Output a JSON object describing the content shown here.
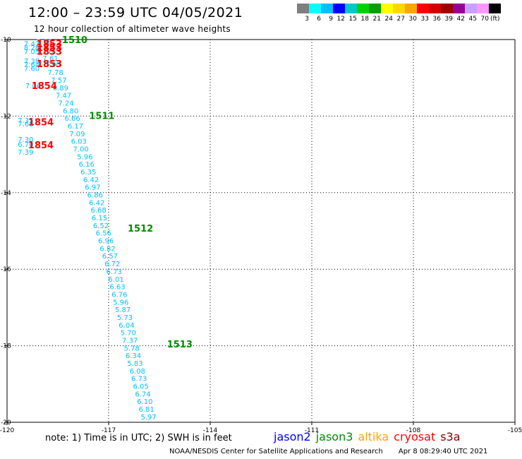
{
  "header": {
    "title": "12:00 – 23:59 UTC 04/05/2021",
    "subtitle": "12 hour collection of altimeter wave heights"
  },
  "colorbar": {
    "colors": [
      "#7f7f7f",
      "#00ffff",
      "#00bfff",
      "#0000ff",
      "#00c8c8",
      "#00d200",
      "#00a000",
      "#ffff00",
      "#ffd700",
      "#ffa500",
      "#ff0000",
      "#d20000",
      "#a00000",
      "#960096",
      "#c8a0ff",
      "#ff96ff",
      "#000000"
    ],
    "labels": [
      "3",
      "6",
      "9",
      "12",
      "15",
      "18",
      "21",
      "24",
      "27",
      "30",
      "33",
      "36",
      "39",
      "42",
      "45",
      "70"
    ],
    "unit": "(ft)"
  },
  "note": "note:  1) Time is in UTC;  2) SWH is in feet",
  "satellites": [
    {
      "name": "jason2",
      "color": "#0000ff"
    },
    {
      "name": "jason3",
      "color": "#008c00"
    },
    {
      "name": "altika",
      "color": "#ffa500"
    },
    {
      "name": "cryosat",
      "color": "#ff0000"
    },
    {
      "name": "s3a",
      "color": "#800000"
    }
  ],
  "footer": {
    "center": "NOAA/NESDIS Center for Satellite Applications and Research",
    "timestamp": "Apr  8 08:29:40 UTC 2021"
  },
  "chart_data": {
    "type": "scatter",
    "xlim": [
      -120,
      -105
    ],
    "ylim": [
      -20,
      -10
    ],
    "xticks": [
      -120,
      -117,
      -114,
      -111,
      -108,
      -105
    ],
    "yticks": [
      -10,
      -12,
      -14,
      -16,
      -18,
      -20
    ],
    "grid": true,
    "point_color": "#00bfff",
    "jason3_color": "#008c00",
    "cryosat_color": "#ff0000",
    "wave_heights": [
      {
        "x": -118.9,
        "y": -10.05,
        "v": "7.66"
      },
      {
        "x": -119.27,
        "y": -10.1,
        "v": "7.47"
      },
      {
        "x": -119.27,
        "y": -10.2,
        "v": "8.28"
      },
      {
        "x": -119.27,
        "y": -10.3,
        "v": "7.05"
      },
      {
        "x": -118.87,
        "y": -10.3,
        "v": "8.00"
      },
      {
        "x": -118.72,
        "y": -10.48,
        "v": "7.61"
      },
      {
        "x": -119.27,
        "y": -10.55,
        "v": "7.38"
      },
      {
        "x": -119.27,
        "y": -10.65,
        "v": "7.64"
      },
      {
        "x": -118.65,
        "y": -10.65,
        "v": "7.90"
      },
      {
        "x": -119.27,
        "y": -10.75,
        "v": "7.60"
      },
      {
        "x": -118.57,
        "y": -10.85,
        "v": "7.78"
      },
      {
        "x": -118.47,
        "y": -11.05,
        "v": "7.57"
      },
      {
        "x": -119.23,
        "y": -11.2,
        "v": "7.06"
      },
      {
        "x": -118.42,
        "y": -11.25,
        "v": "6.89"
      },
      {
        "x": -118.33,
        "y": -11.45,
        "v": "7.47"
      },
      {
        "x": -118.26,
        "y": -11.65,
        "v": "7.24"
      },
      {
        "x": -118.12,
        "y": -11.85,
        "v": "6.80"
      },
      {
        "x": -119.45,
        "y": -12.1,
        "v": "7.35"
      },
      {
        "x": -119.45,
        "y": -12.2,
        "v": "7.68"
      },
      {
        "x": -118.07,
        "y": -12.05,
        "v": "6.66"
      },
      {
        "x": -117.98,
        "y": -12.25,
        "v": "6.17"
      },
      {
        "x": -117.93,
        "y": -12.45,
        "v": "7.09"
      },
      {
        "x": -119.45,
        "y": -12.6,
        "v": "7.30"
      },
      {
        "x": -119.45,
        "y": -12.73,
        "v": "6.70"
      },
      {
        "x": -117.88,
        "y": -12.65,
        "v": "6.03"
      },
      {
        "x": -119.45,
        "y": -12.93,
        "v": "7.39"
      },
      {
        "x": -117.82,
        "y": -12.85,
        "v": "7.00"
      },
      {
        "x": -117.7,
        "y": -13.05,
        "v": "5.96"
      },
      {
        "x": -117.65,
        "y": -13.25,
        "v": "6.16"
      },
      {
        "x": -117.6,
        "y": -13.45,
        "v": "6.35"
      },
      {
        "x": -117.52,
        "y": -13.65,
        "v": "6.42"
      },
      {
        "x": -117.47,
        "y": -13.85,
        "v": "6.97"
      },
      {
        "x": -117.4,
        "y": -14.05,
        "v": "6.86"
      },
      {
        "x": -117.35,
        "y": -14.25,
        "v": "6.42"
      },
      {
        "x": -117.3,
        "y": -14.45,
        "v": "6.68"
      },
      {
        "x": -117.27,
        "y": -14.65,
        "v": "6.15"
      },
      {
        "x": -117.23,
        "y": -14.85,
        "v": "6.52"
      },
      {
        "x": -117.15,
        "y": -15.05,
        "v": "6.56"
      },
      {
        "x": -117.08,
        "y": -15.25,
        "v": "6.96"
      },
      {
        "x": -117.03,
        "y": -15.45,
        "v": "6.82"
      },
      {
        "x": -116.96,
        "y": -15.65,
        "v": "6.57"
      },
      {
        "x": -116.89,
        "y": -15.85,
        "v": "6.72"
      },
      {
        "x": -116.84,
        "y": -16.05,
        "v": "6.73"
      },
      {
        "x": -116.78,
        "y": -16.25,
        "v": "6.01"
      },
      {
        "x": -116.74,
        "y": -16.45,
        "v": "6.63"
      },
      {
        "x": -116.68,
        "y": -16.65,
        "v": "6.76"
      },
      {
        "x": -116.64,
        "y": -16.85,
        "v": "5.96"
      },
      {
        "x": -116.58,
        "y": -17.05,
        "v": "5.87"
      },
      {
        "x": -116.52,
        "y": -17.25,
        "v": "5.73"
      },
      {
        "x": -116.47,
        "y": -17.45,
        "v": "6.04"
      },
      {
        "x": -116.42,
        "y": -17.65,
        "v": "5.70"
      },
      {
        "x": -116.37,
        "y": -17.85,
        "v": "7.37"
      },
      {
        "x": -116.32,
        "y": -18.05,
        "v": "5.78"
      },
      {
        "x": -116.27,
        "y": -18.25,
        "v": "6.34"
      },
      {
        "x": -116.22,
        "y": -18.45,
        "v": "5.83"
      },
      {
        "x": -116.15,
        "y": -18.65,
        "v": "6.08"
      },
      {
        "x": -116.1,
        "y": -18.85,
        "v": "6.73"
      },
      {
        "x": -116.05,
        "y": -19.05,
        "v": "6.05"
      },
      {
        "x": -115.99,
        "y": -19.25,
        "v": "6.74"
      },
      {
        "x": -115.93,
        "y": -19.45,
        "v": "6.10"
      },
      {
        "x": -115.88,
        "y": -19.65,
        "v": "6.81"
      },
      {
        "x": -115.82,
        "y": -19.85,
        "v": "5.97"
      }
    ],
    "jason3_times": [
      {
        "x": -118.0,
        "y": -10.0,
        "v": "1510"
      },
      {
        "x": -117.2,
        "y": -11.98,
        "v": "1511"
      },
      {
        "x": -116.06,
        "y": -14.93,
        "v": "1512"
      },
      {
        "x": -114.9,
        "y": -17.95,
        "v": "1513"
      }
    ],
    "cryosat_times": [
      {
        "x": -118.75,
        "y": -10.1,
        "v": "1853"
      },
      {
        "x": -118.75,
        "y": -10.2,
        "v": "1853"
      },
      {
        "x": -118.75,
        "y": -10.3,
        "v": "1853"
      },
      {
        "x": -118.75,
        "y": -10.63,
        "v": "1853"
      },
      {
        "x": -118.9,
        "y": -11.2,
        "v": "1854"
      },
      {
        "x": -119.0,
        "y": -12.15,
        "v": "1854"
      },
      {
        "x": -119.0,
        "y": -12.75,
        "v": "1854"
      }
    ]
  }
}
